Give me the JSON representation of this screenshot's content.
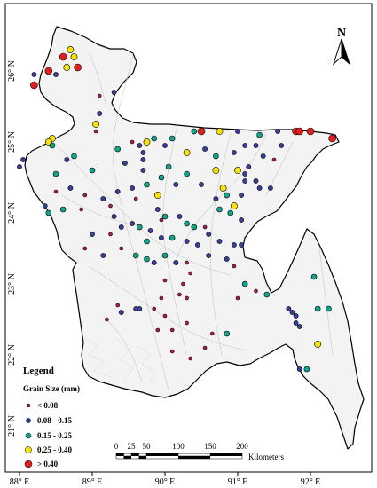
{
  "axes": {
    "x_ticks": [
      "88° E",
      "89° E",
      "90° E",
      "91° E",
      "92° E"
    ],
    "y_ticks": [
      "26° N",
      "25° N",
      "24° N",
      "23° N",
      "22° N",
      "21° N"
    ]
  },
  "north_arrow": {
    "label": "N"
  },
  "legend": {
    "title": "Legend",
    "subtitle": "Grain Size (mm)",
    "items": [
      {
        "label": "< 0.08",
        "color": "#b0185a",
        "class": "c1"
      },
      {
        "label": "0.08 - 0.15",
        "color": "#3b3f9c",
        "class": "c2"
      },
      {
        "label": "0.15 - 0.25",
        "color": "#12a58a",
        "class": "c3"
      },
      {
        "label": "0.25 - 0.40",
        "color": "#f5e20c",
        "class": "c4"
      },
      {
        "label": "> 0.40",
        "color": "#e02020",
        "class": "c5"
      }
    ]
  },
  "scale_bar": {
    "ticks": [
      "0",
      "25",
      "50",
      "100",
      "150",
      "200"
    ],
    "unit": "Kilometers"
  },
  "colors": {
    "land_fill": "#f3f3f3",
    "boundary": "#000000",
    "rivers": "#c8c8c8",
    "point_stroke": "#000000"
  },
  "sample_points": [
    {
      "lon": 88.7,
      "lat": 26.3,
      "c": 4
    },
    {
      "lon": 88.75,
      "lat": 26.2,
      "c": 4
    },
    {
      "lon": 88.6,
      "lat": 26.2,
      "c": 5
    },
    {
      "lon": 88.8,
      "lat": 26.05,
      "c": 5
    },
    {
      "lon": 88.4,
      "lat": 26.0,
      "c": 5
    },
    {
      "lon": 88.2,
      "lat": 25.8,
      "c": 5
    },
    {
      "lon": 88.65,
      "lat": 26.05,
      "c": 4
    },
    {
      "lon": 88.5,
      "lat": 25.95,
      "c": 2
    },
    {
      "lon": 88.2,
      "lat": 25.95,
      "c": 2
    },
    {
      "lon": 89.3,
      "lat": 25.7,
      "c": 2
    },
    {
      "lon": 89.1,
      "lat": 25.65,
      "c": 1
    },
    {
      "lon": 89.1,
      "lat": 25.4,
      "c": 2
    },
    {
      "lon": 89.05,
      "lat": 25.25,
      "c": 4
    },
    {
      "lon": 89.05,
      "lat": 25.15,
      "c": 1
    },
    {
      "lon": 88.45,
      "lat": 25.05,
      "c": 4
    },
    {
      "lon": 88.4,
      "lat": 25.0,
      "c": 4
    },
    {
      "lon": 88.45,
      "lat": 24.95,
      "c": 3
    },
    {
      "lon": 88.75,
      "lat": 24.8,
      "c": 3
    },
    {
      "lon": 88.05,
      "lat": 24.75,
      "c": 2
    },
    {
      "lon": 88.0,
      "lat": 24.65,
      "c": 2
    },
    {
      "lon": 88.5,
      "lat": 24.55,
      "c": 3
    },
    {
      "lon": 88.65,
      "lat": 24.75,
      "c": 2
    },
    {
      "lon": 89.0,
      "lat": 24.6,
      "c": 3
    },
    {
      "lon": 89.35,
      "lat": 24.9,
      "c": 3
    },
    {
      "lon": 89.45,
      "lat": 24.7,
      "c": 2
    },
    {
      "lon": 89.65,
      "lat": 24.95,
      "c": 2
    },
    {
      "lon": 89.7,
      "lat": 24.85,
      "c": 2
    },
    {
      "lon": 89.7,
      "lat": 24.75,
      "c": 2
    },
    {
      "lon": 89.7,
      "lat": 24.6,
      "c": 2
    },
    {
      "lon": 89.75,
      "lat": 25.0,
      "c": 4
    },
    {
      "lon": 89.55,
      "lat": 25.0,
      "c": 1
    },
    {
      "lon": 89.85,
      "lat": 25.05,
      "c": 3
    },
    {
      "lon": 90.1,
      "lat": 25.05,
      "c": 3
    },
    {
      "lon": 90.4,
      "lat": 25.15,
      "c": 3
    },
    {
      "lon": 90.5,
      "lat": 25.15,
      "c": 5
    },
    {
      "lon": 90.75,
      "lat": 25.15,
      "c": 4
    },
    {
      "lon": 91.0,
      "lat": 25.15,
      "c": 2
    },
    {
      "lon": 91.3,
      "lat": 25.1,
      "c": 3
    },
    {
      "lon": 91.55,
      "lat": 25.15,
      "c": 2
    },
    {
      "lon": 91.8,
      "lat": 25.15,
      "c": 5
    },
    {
      "lon": 91.85,
      "lat": 25.15,
      "c": 5
    },
    {
      "lon": 92.0,
      "lat": 25.15,
      "c": 5
    },
    {
      "lon": 92.3,
      "lat": 25.05,
      "c": 5
    },
    {
      "lon": 90.0,
      "lat": 24.95,
      "c": 2
    },
    {
      "lon": 90.3,
      "lat": 24.85,
      "c": 4
    },
    {
      "lon": 90.55,
      "lat": 24.9,
      "c": 2
    },
    {
      "lon": 90.7,
      "lat": 24.8,
      "c": 3
    },
    {
      "lon": 90.95,
      "lat": 24.85,
      "c": 2
    },
    {
      "lon": 91.1,
      "lat": 24.95,
      "c": 2
    },
    {
      "lon": 91.25,
      "lat": 24.95,
      "c": 2
    },
    {
      "lon": 91.35,
      "lat": 24.8,
      "c": 2
    },
    {
      "lon": 91.6,
      "lat": 24.95,
      "c": 2
    },
    {
      "lon": 91.5,
      "lat": 24.75,
      "c": 1
    },
    {
      "lon": 91.15,
      "lat": 24.65,
      "c": 2
    },
    {
      "lon": 91.0,
      "lat": 24.6,
      "c": 4
    },
    {
      "lon": 91.1,
      "lat": 24.55,
      "c": 2
    },
    {
      "lon": 91.1,
      "lat": 24.45,
      "c": 2
    },
    {
      "lon": 91.25,
      "lat": 24.45,
      "c": 2
    },
    {
      "lon": 91.3,
      "lat": 24.35,
      "c": 2
    },
    {
      "lon": 91.05,
      "lat": 24.25,
      "c": 2
    },
    {
      "lon": 91.45,
      "lat": 24.35,
      "c": 2
    },
    {
      "lon": 90.7,
      "lat": 24.6,
      "c": 4
    },
    {
      "lon": 90.3,
      "lat": 24.55,
      "c": 3
    },
    {
      "lon": 90.05,
      "lat": 24.65,
      "c": 3
    },
    {
      "lon": 89.95,
      "lat": 24.5,
      "c": 3
    },
    {
      "lon": 89.75,
      "lat": 24.4,
      "c": 3
    },
    {
      "lon": 90.15,
      "lat": 24.4,
      "c": 2
    },
    {
      "lon": 90.5,
      "lat": 24.4,
      "c": 2
    },
    {
      "lon": 90.8,
      "lat": 24.35,
      "c": 4
    },
    {
      "lon": 90.85,
      "lat": 24.25,
      "c": 3
    },
    {
      "lon": 90.7,
      "lat": 24.2,
      "c": 2
    },
    {
      "lon": 90.95,
      "lat": 24.1,
      "c": 4
    },
    {
      "lon": 90.75,
      "lat": 24.05,
      "c": 3
    },
    {
      "lon": 90.9,
      "lat": 24.0,
      "c": 3
    },
    {
      "lon": 91.05,
      "lat": 23.9,
      "c": 2
    },
    {
      "lon": 88.5,
      "lat": 24.3,
      "c": 1
    },
    {
      "lon": 88.7,
      "lat": 24.35,
      "c": 2
    },
    {
      "lon": 88.9,
      "lat": 24.25,
      "c": 1
    },
    {
      "lon": 88.85,
      "lat": 24.05,
      "c": 1
    },
    {
      "lon": 88.6,
      "lat": 24.05,
      "c": 3
    },
    {
      "lon": 88.35,
      "lat": 24.1,
      "c": 2
    },
    {
      "lon": 88.4,
      "lat": 24.0,
      "c": 3
    },
    {
      "lon": 89.15,
      "lat": 24.2,
      "c": 2
    },
    {
      "lon": 89.25,
      "lat": 24.1,
      "c": 1
    },
    {
      "lon": 89.35,
      "lat": 24.3,
      "c": 2
    },
    {
      "lon": 89.55,
      "lat": 24.35,
      "c": 2
    },
    {
      "lon": 89.6,
      "lat": 24.2,
      "c": 1
    },
    {
      "lon": 89.9,
      "lat": 24.25,
      "c": 4
    },
    {
      "lon": 89.9,
      "lat": 24.05,
      "c": 2
    },
    {
      "lon": 90.0,
      "lat": 23.95,
      "c": 3
    },
    {
      "lon": 89.95,
      "lat": 23.9,
      "c": 1
    },
    {
      "lon": 90.2,
      "lat": 23.95,
      "c": 2
    },
    {
      "lon": 90.3,
      "lat": 23.85,
      "c": 3
    },
    {
      "lon": 90.4,
      "lat": 23.8,
      "c": 3
    },
    {
      "lon": 90.55,
      "lat": 23.8,
      "c": 1
    },
    {
      "lon": 90.6,
      "lat": 23.7,
      "c": 2
    },
    {
      "lon": 90.75,
      "lat": 23.6,
      "c": 2
    },
    {
      "lon": 90.95,
      "lat": 23.55,
      "c": 2
    },
    {
      "lon": 91.05,
      "lat": 23.55,
      "c": 2
    },
    {
      "lon": 90.45,
      "lat": 23.55,
      "c": 2
    },
    {
      "lon": 90.3,
      "lat": 23.6,
      "c": 2
    },
    {
      "lon": 90.1,
      "lat": 23.65,
      "c": 3
    },
    {
      "lon": 89.95,
      "lat": 23.65,
      "c": 2
    },
    {
      "lon": 89.8,
      "lat": 23.75,
      "c": 2
    },
    {
      "lon": 89.75,
      "lat": 23.6,
      "c": 3
    },
    {
      "lon": 89.65,
      "lat": 23.8,
      "c": 3
    },
    {
      "lon": 89.55,
      "lat": 23.85,
      "c": 2
    },
    {
      "lon": 89.4,
      "lat": 23.8,
      "c": 2
    },
    {
      "lon": 89.3,
      "lat": 23.95,
      "c": 2
    },
    {
      "lon": 89.25,
      "lat": 23.7,
      "c": 1
    },
    {
      "lon": 89.0,
      "lat": 23.7,
      "c": 2
    },
    {
      "lon": 88.9,
      "lat": 23.5,
      "c": 1
    },
    {
      "lon": 89.15,
      "lat": 23.4,
      "c": 2
    },
    {
      "lon": 89.4,
      "lat": 23.5,
      "c": 1
    },
    {
      "lon": 89.6,
      "lat": 23.4,
      "c": 3
    },
    {
      "lon": 89.75,
      "lat": 23.35,
      "c": 3
    },
    {
      "lon": 89.85,
      "lat": 23.3,
      "c": 2
    },
    {
      "lon": 90.0,
      "lat": 23.4,
      "c": 3
    },
    {
      "lon": 90.15,
      "lat": 23.3,
      "c": 2
    },
    {
      "lon": 90.3,
      "lat": 23.3,
      "c": 1
    },
    {
      "lon": 90.6,
      "lat": 23.4,
      "c": 2
    },
    {
      "lon": 90.85,
      "lat": 23.35,
      "c": 2
    },
    {
      "lon": 90.95,
      "lat": 23.25,
      "c": 1
    },
    {
      "lon": 90.35,
      "lat": 23.15,
      "c": 1
    },
    {
      "lon": 90.0,
      "lat": 23.05,
      "c": 1
    },
    {
      "lon": 90.25,
      "lat": 23.0,
      "c": 1
    },
    {
      "lon": 90.2,
      "lat": 22.85,
      "c": 1
    },
    {
      "lon": 90.3,
      "lat": 22.8,
      "c": 1
    },
    {
      "lon": 89.95,
      "lat": 22.8,
      "c": 1
    },
    {
      "lon": 89.35,
      "lat": 22.7,
      "c": 1
    },
    {
      "lon": 89.4,
      "lat": 22.6,
      "c": 2
    },
    {
      "lon": 89.6,
      "lat": 22.65,
      "c": 2
    },
    {
      "lon": 89.65,
      "lat": 22.65,
      "c": 2
    },
    {
      "lon": 89.85,
      "lat": 22.65,
      "c": 1
    },
    {
      "lon": 90.0,
      "lat": 22.55,
      "c": 1
    },
    {
      "lon": 89.2,
      "lat": 22.5,
      "c": 1
    },
    {
      "lon": 89.9,
      "lat": 22.35,
      "c": 1
    },
    {
      "lon": 90.1,
      "lat": 22.35,
      "c": 1
    },
    {
      "lon": 90.3,
      "lat": 22.45,
      "c": 1
    },
    {
      "lon": 90.65,
      "lat": 22.3,
      "c": 1
    },
    {
      "lon": 90.85,
      "lat": 22.3,
      "c": 3
    },
    {
      "lon": 90.55,
      "lat": 22.1,
      "c": 1
    },
    {
      "lon": 90.1,
      "lat": 22.05,
      "c": 1
    },
    {
      "lon": 90.35,
      "lat": 21.95,
      "c": 1
    },
    {
      "lon": 91.0,
      "lat": 22.8,
      "c": 1
    },
    {
      "lon": 91.1,
      "lat": 23.0,
      "c": 3
    },
    {
      "lon": 91.25,
      "lat": 22.9,
      "c": 1
    },
    {
      "lon": 91.4,
      "lat": 22.85,
      "c": 3
    },
    {
      "lon": 91.7,
      "lat": 22.65,
      "c": 2
    },
    {
      "lon": 91.75,
      "lat": 22.6,
      "c": 2
    },
    {
      "lon": 91.8,
      "lat": 22.55,
      "c": 2
    },
    {
      "lon": 91.8,
      "lat": 22.45,
      "c": 2
    },
    {
      "lon": 91.85,
      "lat": 22.4,
      "c": 2
    },
    {
      "lon": 92.1,
      "lat": 22.65,
      "c": 3
    },
    {
      "lon": 92.25,
      "lat": 22.65,
      "c": 3
    },
    {
      "lon": 92.05,
      "lat": 23.1,
      "c": 3
    },
    {
      "lon": 92.1,
      "lat": 22.15,
      "c": 4
    },
    {
      "lon": 91.85,
      "lat": 21.8,
      "c": 2
    },
    {
      "lon": 91.95,
      "lat": 21.8,
      "c": 3
    }
  ]
}
